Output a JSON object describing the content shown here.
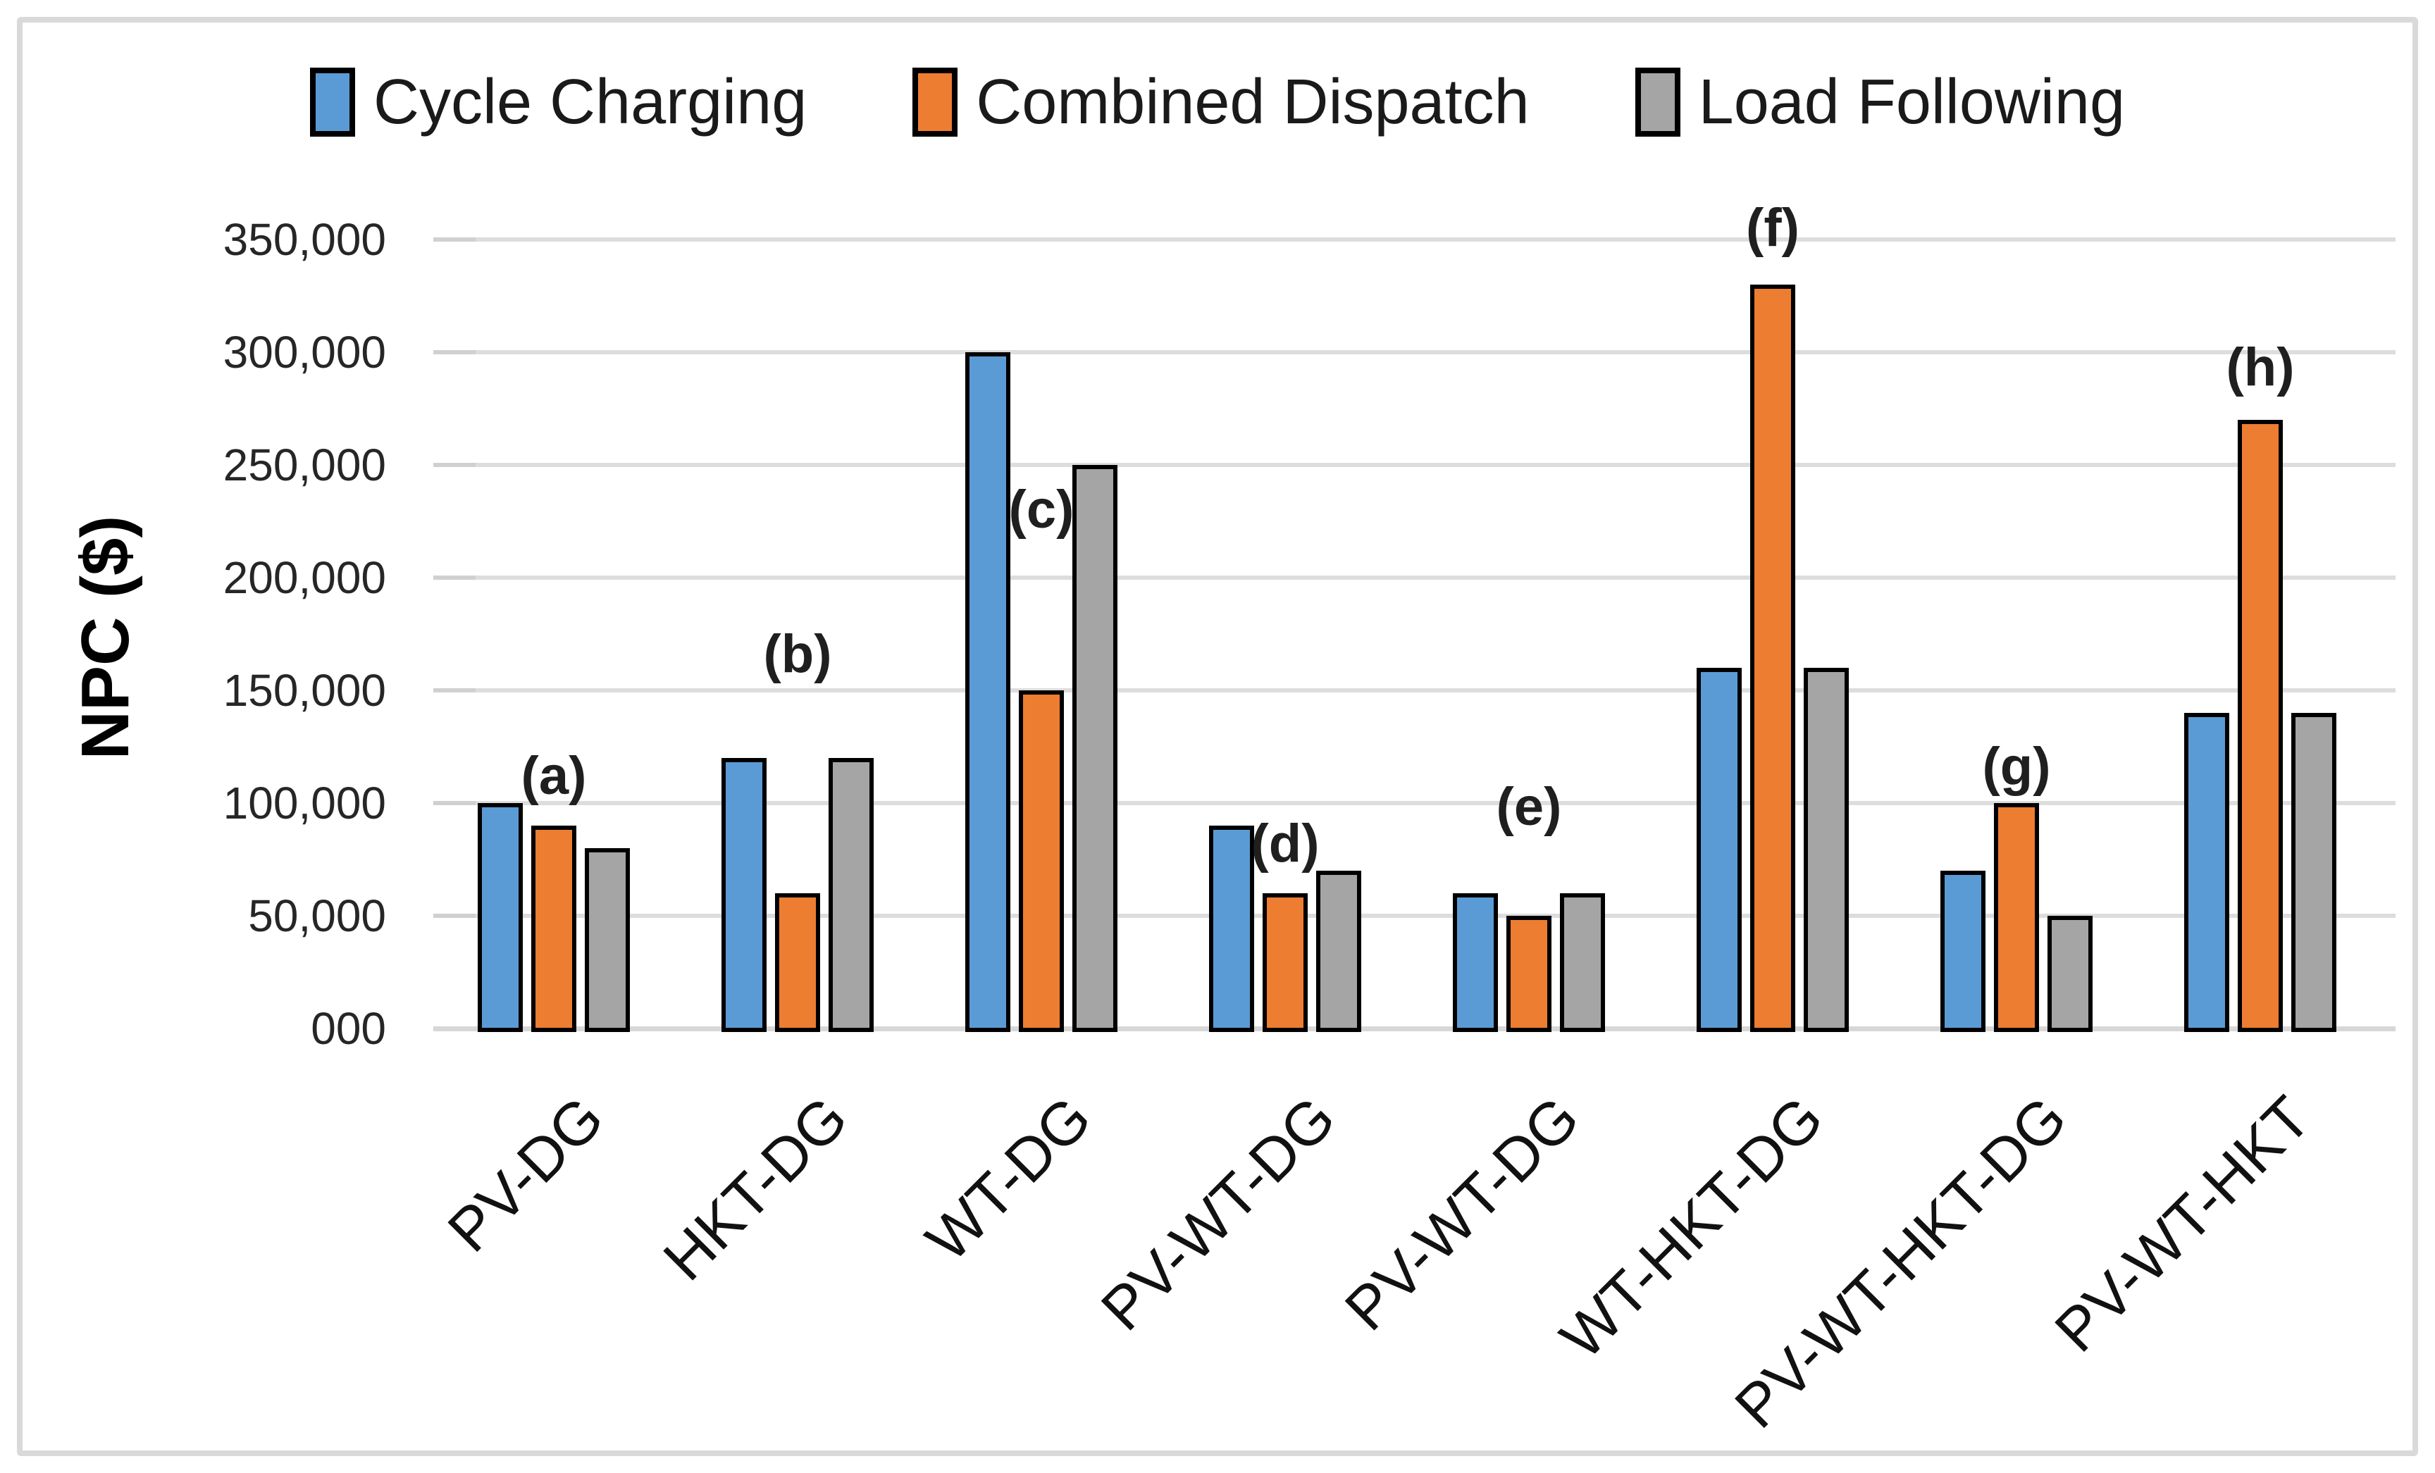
{
  "figure": {
    "background_color": "#ffffff",
    "frame_color": "#d9d9d9",
    "gridline_color": "#dddddd",
    "bar_border_color": "#000000"
  },
  "legend": {
    "items": [
      {
        "label": "Cycle Charging",
        "color": "#5b9bd5"
      },
      {
        "label": "Combined Dispatch",
        "color": "#ed7d31"
      },
      {
        "label": "Load Following",
        "color": "#a5a5a5"
      }
    ]
  },
  "y_axis": {
    "title": "NPC ($)",
    "tick_labels": [
      "350,000",
      "300,000",
      "250,000",
      "200,000",
      "150,000",
      "100,000",
      "50,000",
      "000"
    ]
  },
  "chart_data": {
    "type": "bar",
    "title": "",
    "xlabel": "",
    "ylabel": "NPC ($)",
    "ylim": [
      0,
      350000
    ],
    "grid": true,
    "legend_position": "top",
    "categories": [
      "PV-DG",
      "HKT-DG",
      "WT-DG",
      "PV-WT-DG",
      "PV-WT-DG",
      "WT-HKT-DG",
      "PV-WT-HKT-DG",
      "PV-WT-HKT"
    ],
    "series": [
      {
        "name": "Cycle Charging",
        "color": "#5b9bd5",
        "values": [
          100000,
          120000,
          300000,
          90000,
          60000,
          160000,
          70000,
          140000
        ]
      },
      {
        "name": "Combined Dispatch",
        "color": "#ed7d31",
        "values": [
          90000,
          60000,
          150000,
          60000,
          50000,
          330000,
          100000,
          270000
        ]
      },
      {
        "name": "Load Following",
        "color": "#a5a5a5",
        "values": [
          80000,
          120000,
          250000,
          70000,
          60000,
          160000,
          50000,
          140000
        ]
      }
    ],
    "annotations": [
      {
        "label": "(a)",
        "group_index": 0,
        "y_value": 112000
      },
      {
        "label": "(b)",
        "group_index": 1,
        "y_value": 166000
      },
      {
        "label": "(c)",
        "group_index": 2,
        "y_value": 230000
      },
      {
        "label": "(d)",
        "group_index": 3,
        "y_value": 82000
      },
      {
        "label": "(e)",
        "group_index": 4,
        "y_value": 98000
      },
      {
        "label": "(f)",
        "group_index": 5,
        "y_value": 355000
      },
      {
        "label": "(g)",
        "group_index": 6,
        "y_value": 116000
      },
      {
        "label": "(h)",
        "group_index": 7,
        "y_value": 293000
      }
    ]
  }
}
